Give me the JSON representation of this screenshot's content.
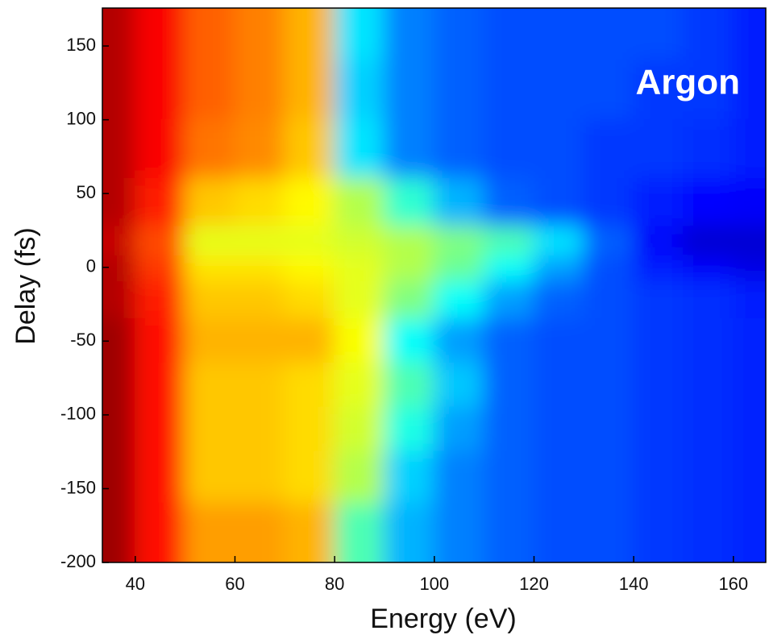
{
  "chart_data": {
    "type": "heatmap",
    "xlabel": "Energy (eV)",
    "ylabel": "Delay (fs)",
    "annotation": "Argon",
    "x": [
      35,
      45,
      55,
      65,
      75,
      85,
      95,
      105,
      115,
      125,
      135,
      145,
      155,
      165
    ],
    "y": [
      160,
      120,
      80,
      40,
      15,
      0,
      -20,
      -50,
      -80,
      -110,
      -140,
      -180
    ],
    "z": [
      [
        0.95,
        0.88,
        0.78,
        0.75,
        0.7,
        0.35,
        0.25,
        0.22,
        0.2,
        0.2,
        0.2,
        0.2,
        0.18,
        0.15
      ],
      [
        0.95,
        0.88,
        0.78,
        0.75,
        0.7,
        0.33,
        0.25,
        0.22,
        0.2,
        0.2,
        0.2,
        0.18,
        0.18,
        0.15
      ],
      [
        0.95,
        0.88,
        0.76,
        0.74,
        0.68,
        0.35,
        0.25,
        0.22,
        0.2,
        0.2,
        0.18,
        0.18,
        0.17,
        0.15
      ],
      [
        0.95,
        0.85,
        0.68,
        0.66,
        0.63,
        0.55,
        0.42,
        0.3,
        0.22,
        0.2,
        0.18,
        0.15,
        0.13,
        0.12
      ],
      [
        0.93,
        0.8,
        0.6,
        0.6,
        0.6,
        0.58,
        0.55,
        0.5,
        0.45,
        0.35,
        0.22,
        0.12,
        0.08,
        0.08
      ],
      [
        0.95,
        0.82,
        0.65,
        0.65,
        0.63,
        0.6,
        0.55,
        0.48,
        0.38,
        0.28,
        0.2,
        0.15,
        0.12,
        0.1
      ],
      [
        0.95,
        0.85,
        0.68,
        0.68,
        0.66,
        0.6,
        0.5,
        0.38,
        0.28,
        0.22,
        0.2,
        0.18,
        0.17,
        0.15
      ],
      [
        0.97,
        0.86,
        0.7,
        0.7,
        0.7,
        0.62,
        0.38,
        0.28,
        0.22,
        0.2,
        0.2,
        0.18,
        0.17,
        0.16
      ],
      [
        0.97,
        0.86,
        0.68,
        0.68,
        0.66,
        0.6,
        0.45,
        0.32,
        0.22,
        0.2,
        0.2,
        0.18,
        0.17,
        0.16
      ],
      [
        0.97,
        0.86,
        0.68,
        0.68,
        0.66,
        0.58,
        0.4,
        0.28,
        0.22,
        0.2,
        0.2,
        0.18,
        0.17,
        0.16
      ],
      [
        0.97,
        0.86,
        0.68,
        0.68,
        0.66,
        0.55,
        0.33,
        0.25,
        0.22,
        0.2,
        0.2,
        0.18,
        0.17,
        0.16
      ],
      [
        0.97,
        0.86,
        0.72,
        0.72,
        0.7,
        0.45,
        0.3,
        0.25,
        0.22,
        0.2,
        0.2,
        0.18,
        0.17,
        0.16
      ]
    ],
    "xlim": [
      33.4,
      166.5
    ],
    "ylim": [
      -200,
      175.7
    ],
    "xticks": [
      40,
      60,
      80,
      100,
      120,
      140,
      160
    ],
    "yticks": [
      -200,
      -150,
      -100,
      -50,
      0,
      50,
      100,
      150
    ]
  }
}
